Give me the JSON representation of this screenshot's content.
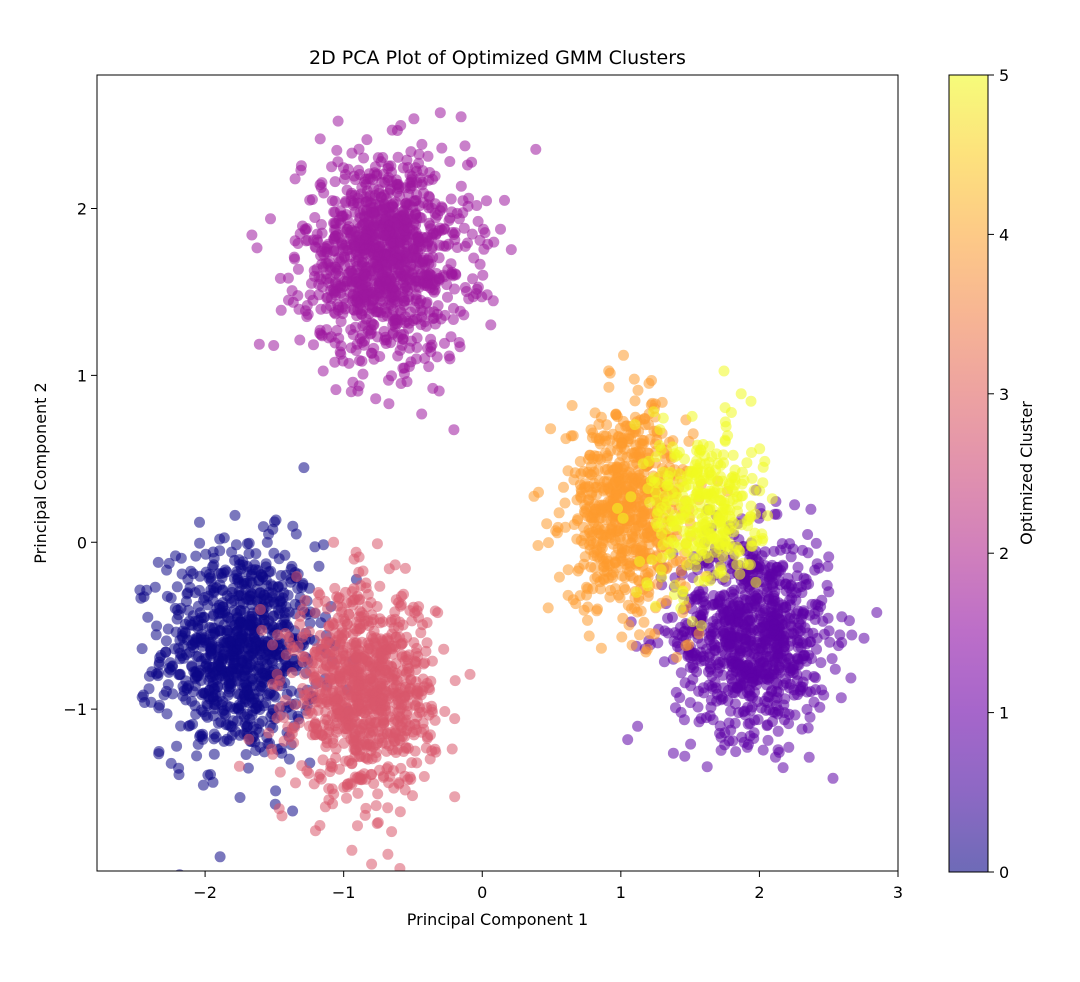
{
  "chart_data": {
    "type": "scatter",
    "title": "2D PCA Plot of Optimized GMM Clusters",
    "xlabel": "Principal Component 1",
    "ylabel": "Principal Component 2",
    "xlim": [
      -2.78,
      3.0
    ],
    "ylim": [
      -1.97,
      2.8
    ],
    "x_ticks": [
      -2,
      -1,
      0,
      1,
      2,
      3
    ],
    "x_tick_labels": [
      "−2",
      "−1",
      "0",
      "1",
      "2",
      "3"
    ],
    "y_ticks": [
      -1,
      0,
      1,
      2
    ],
    "y_tick_labels": [
      "−1",
      "0",
      "1",
      "2"
    ],
    "grid": false,
    "marker_alpha": 0.55,
    "colormap": "plasma",
    "colorbar": {
      "label": "Optimized Cluster",
      "range": [
        0,
        5
      ],
      "ticks": [
        0,
        1,
        2,
        3,
        4,
        5
      ],
      "tick_labels": [
        "0",
        "1",
        "2",
        "3",
        "4",
        "5"
      ],
      "colors": [
        "#0d0887",
        "#41049d",
        "#6a00a8",
        "#8f0da4",
        "#b12a90",
        "#cc4778",
        "#e16462",
        "#f2844b",
        "#fca636",
        "#fcce25",
        "#f0f921"
      ]
    },
    "series": [
      {
        "cluster": 0,
        "color": "#0d0887",
        "center": [
          -1.75,
          -0.65
        ],
        "spread": [
          0.28,
          0.32
        ],
        "count": 900
      },
      {
        "cluster": 1,
        "color": "#5c01a6",
        "center": [
          1.95,
          -0.55
        ],
        "spread": [
          0.28,
          0.3
        ],
        "count": 900
      },
      {
        "cluster": 2,
        "color": "#9c179e",
        "center": [
          -0.7,
          1.7
        ],
        "spread": [
          0.3,
          0.3
        ],
        "count": 1100
      },
      {
        "cluster": 3,
        "color": "#d8576b",
        "center": [
          -0.85,
          -0.9
        ],
        "spread": [
          0.25,
          0.3
        ],
        "count": 900
      },
      {
        "cluster": 4,
        "color": "#fd9a2e",
        "center": [
          1.05,
          0.2
        ],
        "spread": [
          0.22,
          0.3
        ],
        "count": 700
      },
      {
        "cluster": 5,
        "color": "#f0f921",
        "center": [
          1.6,
          0.2
        ],
        "spread": [
          0.2,
          0.25
        ],
        "count": 350
      }
    ]
  }
}
